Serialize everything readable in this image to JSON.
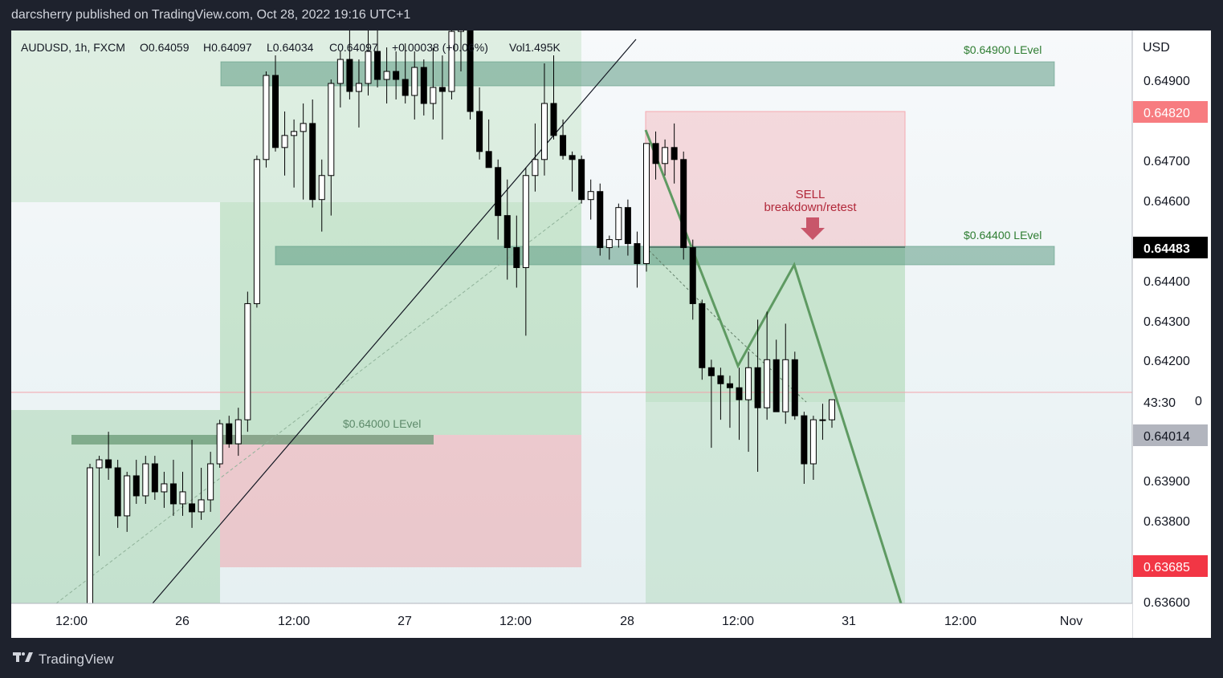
{
  "header": {
    "published": "darcsherry published on TradingView.com, Oct 28, 2022 19:16 UTC+1"
  },
  "legend": {
    "symbol": "AUDUSD, 1h, FXCM",
    "open": "O0.64059",
    "high": "H0.64097",
    "low": "L0.64034",
    "close": "C0.64097",
    "change": "+0.00038 (+0.06%)",
    "volume": "Vol1.495K"
  },
  "price_axis": {
    "currency": "USD",
    "ticks": [
      "0.64900",
      "0.64700",
      "0.64600",
      "0.64400",
      "0.64300",
      "0.64200",
      "0.63900",
      "0.63800",
      "0.63600"
    ],
    "tag_top": "0.64820",
    "tag_current": "0.64483",
    "countdown": "43:30",
    "countdown_suffix": "0",
    "tag_last": "0.64014",
    "tag_bottom": "0.63685"
  },
  "annotations": {
    "level_top": "$0.64900 LEvel",
    "level_mid": "$0.64400 LEvel",
    "level_low": "$0.64000 LEvel",
    "sell": "SELL",
    "sell_sub": "breakdown/retest"
  },
  "time_axis": [
    "12:00",
    "26",
    "12:00",
    "27",
    "12:00",
    "28",
    "12:00",
    "31",
    "12:00",
    "Nov"
  ],
  "brand": "TradingView",
  "colors": {
    "up": "#ffffff",
    "down": "#000000",
    "zone_green": "#4caf50",
    "zone_red": "#f23645",
    "level": "#5d9b84"
  },
  "chart_data": {
    "type": "candlestick",
    "symbol": "AUDUSD",
    "interval": "1h",
    "ylim": [
      0.6357,
      0.6507
    ],
    "candles": [
      {
        "o": 0.6352,
        "h": 0.6394,
        "l": 0.6352,
        "c": 0.6393
      },
      {
        "o": 0.6393,
        "h": 0.6396,
        "l": 0.6371,
        "c": 0.6395
      },
      {
        "o": 0.6395,
        "h": 0.6402,
        "l": 0.639,
        "c": 0.6393
      },
      {
        "o": 0.6393,
        "h": 0.6395,
        "l": 0.6378,
        "c": 0.6381
      },
      {
        "o": 0.6381,
        "h": 0.6392,
        "l": 0.6377,
        "c": 0.6391
      },
      {
        "o": 0.6391,
        "h": 0.6395,
        "l": 0.6384,
        "c": 0.6386
      },
      {
        "o": 0.6386,
        "h": 0.6396,
        "l": 0.6384,
        "c": 0.6394
      },
      {
        "o": 0.6394,
        "h": 0.6396,
        "l": 0.6385,
        "c": 0.6387
      },
      {
        "o": 0.6387,
        "h": 0.6392,
        "l": 0.6383,
        "c": 0.6389
      },
      {
        "o": 0.6389,
        "h": 0.6395,
        "l": 0.6381,
        "c": 0.6384
      },
      {
        "o": 0.6384,
        "h": 0.6392,
        "l": 0.6381,
        "c": 0.6387
      },
      {
        "o": 0.6384,
        "h": 0.64,
        "l": 0.6378,
        "c": 0.6382
      },
      {
        "o": 0.6382,
        "h": 0.6393,
        "l": 0.638,
        "c": 0.6385
      },
      {
        "o": 0.6385,
        "h": 0.6397,
        "l": 0.6382,
        "c": 0.6394
      },
      {
        "o": 0.6394,
        "h": 0.6405,
        "l": 0.6393,
        "c": 0.6404
      },
      {
        "o": 0.6404,
        "h": 0.6406,
        "l": 0.6398,
        "c": 0.6399
      },
      {
        "o": 0.6399,
        "h": 0.6408,
        "l": 0.6396,
        "c": 0.6405
      },
      {
        "o": 0.6405,
        "h": 0.6437,
        "l": 0.6402,
        "c": 0.6434
      },
      {
        "o": 0.6434,
        "h": 0.6471,
        "l": 0.6433,
        "c": 0.647
      },
      {
        "o": 0.647,
        "h": 0.6492,
        "l": 0.6468,
        "c": 0.6491
      },
      {
        "o": 0.6491,
        "h": 0.6496,
        "l": 0.6472,
        "c": 0.6473
      },
      {
        "o": 0.6473,
        "h": 0.6482,
        "l": 0.6466,
        "c": 0.6476
      },
      {
        "o": 0.6476,
        "h": 0.648,
        "l": 0.6463,
        "c": 0.6477
      },
      {
        "o": 0.6477,
        "h": 0.6484,
        "l": 0.646,
        "c": 0.6479
      },
      {
        "o": 0.6479,
        "h": 0.6485,
        "l": 0.6458,
        "c": 0.646
      },
      {
        "o": 0.646,
        "h": 0.647,
        "l": 0.6452,
        "c": 0.6466
      },
      {
        "o": 0.6466,
        "h": 0.649,
        "l": 0.6456,
        "c": 0.6489
      },
      {
        "o": 0.6489,
        "h": 0.6497,
        "l": 0.6483,
        "c": 0.6495
      },
      {
        "o": 0.6495,
        "h": 0.6503,
        "l": 0.6485,
        "c": 0.6487
      },
      {
        "o": 0.6487,
        "h": 0.6495,
        "l": 0.6478,
        "c": 0.6489
      },
      {
        "o": 0.6489,
        "h": 0.6503,
        "l": 0.6486,
        "c": 0.6497
      },
      {
        "o": 0.6497,
        "h": 0.6505,
        "l": 0.6488,
        "c": 0.649
      },
      {
        "o": 0.649,
        "h": 0.6498,
        "l": 0.6484,
        "c": 0.6492
      },
      {
        "o": 0.6492,
        "h": 0.6497,
        "l": 0.6485,
        "c": 0.649
      },
      {
        "o": 0.649,
        "h": 0.6499,
        "l": 0.6484,
        "c": 0.6486
      },
      {
        "o": 0.6486,
        "h": 0.6497,
        "l": 0.648,
        "c": 0.6493
      },
      {
        "o": 0.6493,
        "h": 0.6495,
        "l": 0.6481,
        "c": 0.6484
      },
      {
        "o": 0.6484,
        "h": 0.6498,
        "l": 0.648,
        "c": 0.6488
      },
      {
        "o": 0.6488,
        "h": 0.6496,
        "l": 0.6475,
        "c": 0.6487
      },
      {
        "o": 0.6487,
        "h": 0.6505,
        "l": 0.6485,
        "c": 0.6502
      },
      {
        "o": 0.6502,
        "h": 0.6505,
        "l": 0.6492,
        "c": 0.6503
      },
      {
        "o": 0.6503,
        "h": 0.6505,
        "l": 0.648,
        "c": 0.6482
      },
      {
        "o": 0.6482,
        "h": 0.6488,
        "l": 0.647,
        "c": 0.6472
      },
      {
        "o": 0.6472,
        "h": 0.648,
        "l": 0.6468,
        "c": 0.6468
      },
      {
        "o": 0.6468,
        "h": 0.647,
        "l": 0.645,
        "c": 0.6456
      },
      {
        "o": 0.6456,
        "h": 0.6465,
        "l": 0.644,
        "c": 0.6448
      },
      {
        "o": 0.6448,
        "h": 0.6456,
        "l": 0.6438,
        "c": 0.6443
      },
      {
        "o": 0.6443,
        "h": 0.6468,
        "l": 0.6426,
        "c": 0.6466
      },
      {
        "o": 0.6466,
        "h": 0.6479,
        "l": 0.6462,
        "c": 0.647
      },
      {
        "o": 0.647,
        "h": 0.6494,
        "l": 0.6466,
        "c": 0.6484
      },
      {
        "o": 0.6484,
        "h": 0.6496,
        "l": 0.6475,
        "c": 0.6476
      },
      {
        "o": 0.6476,
        "h": 0.648,
        "l": 0.647,
        "c": 0.6471
      },
      {
        "o": 0.6471,
        "h": 0.6472,
        "l": 0.6462,
        "c": 0.647
      },
      {
        "o": 0.647,
        "h": 0.6471,
        "l": 0.6459,
        "c": 0.646
      },
      {
        "o": 0.646,
        "h": 0.6465,
        "l": 0.6455,
        "c": 0.6462
      },
      {
        "o": 0.6462,
        "h": 0.6464,
        "l": 0.6446,
        "c": 0.6448
      },
      {
        "o": 0.6448,
        "h": 0.6451,
        "l": 0.6445,
        "c": 0.645
      },
      {
        "o": 0.645,
        "h": 0.6459,
        "l": 0.6448,
        "c": 0.6458
      },
      {
        "o": 0.6458,
        "h": 0.646,
        "l": 0.6446,
        "c": 0.6449
      },
      {
        "o": 0.6449,
        "h": 0.6452,
        "l": 0.6438,
        "c": 0.6444
      },
      {
        "o": 0.6444,
        "h": 0.6474,
        "l": 0.6442,
        "c": 0.6474
      },
      {
        "o": 0.6474,
        "h": 0.6477,
        "l": 0.6465,
        "c": 0.6469
      },
      {
        "o": 0.6469,
        "h": 0.6475,
        "l": 0.6466,
        "c": 0.6473
      },
      {
        "o": 0.6473,
        "h": 0.6479,
        "l": 0.6464,
        "c": 0.647
      },
      {
        "o": 0.647,
        "h": 0.6472,
        "l": 0.6445,
        "c": 0.6448
      },
      {
        "o": 0.6448,
        "h": 0.645,
        "l": 0.643,
        "c": 0.6434
      },
      {
        "o": 0.6434,
        "h": 0.6435,
        "l": 0.6415,
        "c": 0.6418
      },
      {
        "o": 0.6418,
        "h": 0.642,
        "l": 0.6398,
        "c": 0.6416
      },
      {
        "o": 0.6416,
        "h": 0.6418,
        "l": 0.6405,
        "c": 0.6414
      },
      {
        "o": 0.6414,
        "h": 0.6416,
        "l": 0.6403,
        "c": 0.6413
      },
      {
        "o": 0.6413,
        "h": 0.6418,
        "l": 0.64,
        "c": 0.641
      },
      {
        "o": 0.641,
        "h": 0.6422,
        "l": 0.6397,
        "c": 0.6418
      },
      {
        "o": 0.6418,
        "h": 0.643,
        "l": 0.6392,
        "c": 0.6408
      },
      {
        "o": 0.6408,
        "h": 0.6432,
        "l": 0.6405,
        "c": 0.642
      },
      {
        "o": 0.642,
        "h": 0.6425,
        "l": 0.6407,
        "c": 0.6407
      },
      {
        "o": 0.6407,
        "h": 0.6429,
        "l": 0.6404,
        "c": 0.642
      },
      {
        "o": 0.642,
        "h": 0.6422,
        "l": 0.6405,
        "c": 0.6406
      },
      {
        "o": 0.6406,
        "h": 0.6407,
        "l": 0.6389,
        "c": 0.6394
      },
      {
        "o": 0.6394,
        "h": 0.6406,
        "l": 0.639,
        "c": 0.6405
      },
      {
        "o": 0.6405,
        "h": 0.6409,
        "l": 0.64,
        "c": 0.6405
      },
      {
        "o": 0.6405,
        "h": 0.641,
        "l": 0.6403,
        "c": 0.641
      }
    ],
    "levels": [
      0.649,
      0.644,
      0.64
    ],
    "sell_entry": 0.64483,
    "stop_loss": 0.6482,
    "take_profit": 0.63685
  }
}
